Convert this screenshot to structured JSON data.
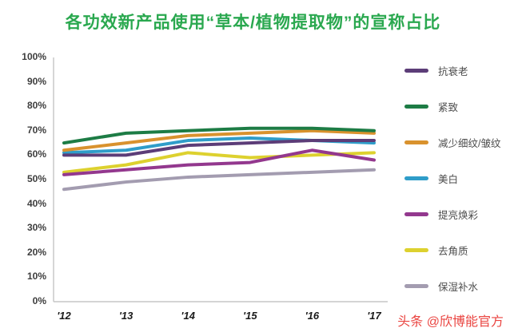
{
  "title": "各功效新产品使用“草本/植物提取物”的宣称占比",
  "footer": {
    "watermark": "头条 @欣博能官方"
  },
  "colors": {
    "title": "#2aa84f",
    "watermark": "#ea4440",
    "axis": "#c5c5c5",
    "tick_text": "#3d3d3d",
    "legend_text": "#4d4d4d",
    "background": "#ffffff"
  },
  "chart_data": {
    "type": "line",
    "title": "各功效新产品使用“草本/植物提取物”的宣称占比",
    "categories": [
      "'12",
      "'13",
      "'14",
      "'15",
      "'16",
      "'17"
    ],
    "yticks": [
      "100%",
      "90%",
      "80%",
      "70%",
      "60%",
      "50%",
      "40%",
      "30%",
      "20%",
      "10%",
      "0%"
    ],
    "ylim": [
      0,
      100
    ],
    "xlabel": "",
    "ylabel": "",
    "grid": false,
    "legend_position": "right",
    "series": [
      {
        "name": "抗衰老",
        "color": "#5c3d78",
        "values": [
          60,
          60,
          64,
          65,
          66,
          66
        ]
      },
      {
        "name": "紧致",
        "color": "#1d7c45",
        "values": [
          65,
          69,
          70,
          71,
          71,
          70
        ]
      },
      {
        "name": "减少细纹/皱纹",
        "color": "#d9922e",
        "values": [
          62,
          65,
          68,
          69,
          70,
          69
        ]
      },
      {
        "name": "美白",
        "color": "#2f9dc9",
        "values": [
          61,
          62,
          66,
          67,
          66,
          65
        ]
      },
      {
        "name": "提亮焕彩",
        "color": "#93388e",
        "values": [
          52,
          54,
          56,
          57,
          62,
          58
        ]
      },
      {
        "name": "去角质",
        "color": "#ddd12f",
        "values": [
          53,
          56,
          61,
          59,
          60,
          61
        ]
      },
      {
        "name": "保湿补水",
        "color": "#a39cb0",
        "values": [
          46,
          49,
          51,
          52,
          53,
          54
        ]
      }
    ]
  }
}
